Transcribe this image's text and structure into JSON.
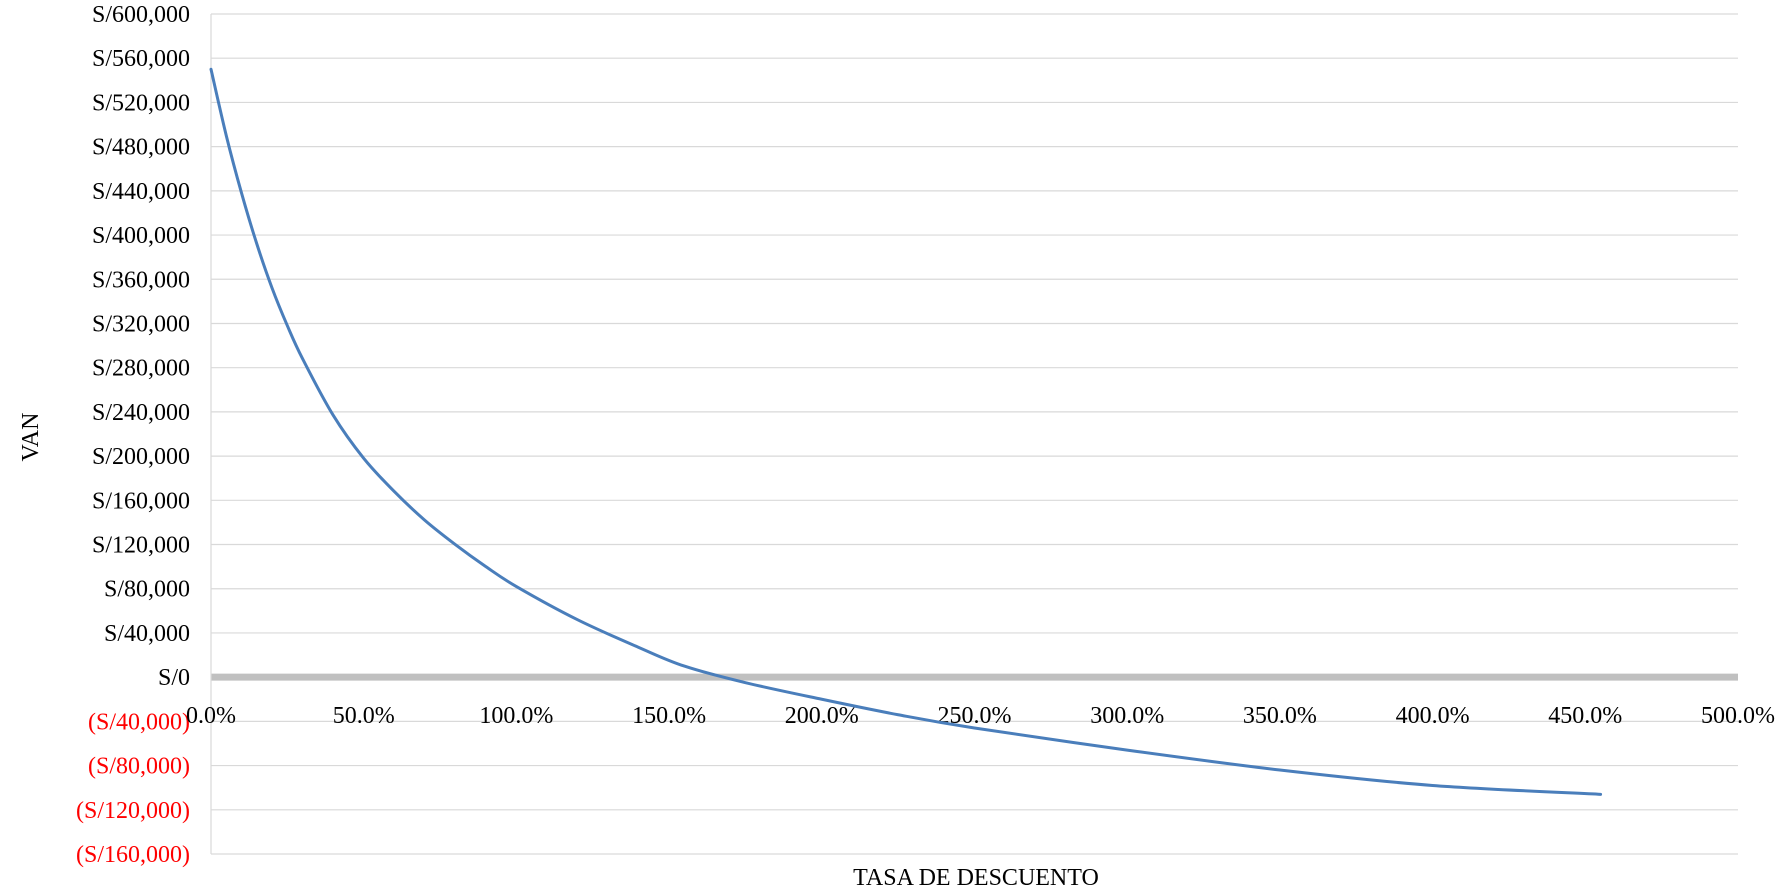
{
  "chart_data": {
    "type": "line",
    "title": "",
    "xlabel": "TASA DE DESCUENTO",
    "ylabel": "VAN",
    "xlim": [
      0,
      500
    ],
    "ylim": [
      -160000,
      600000
    ],
    "y_ticks": [
      {
        "value": 600000,
        "label": "S/600,000"
      },
      {
        "value": 560000,
        "label": "S/560,000"
      },
      {
        "value": 520000,
        "label": "S/520,000"
      },
      {
        "value": 480000,
        "label": "S/480,000"
      },
      {
        "value": 440000,
        "label": "S/440,000"
      },
      {
        "value": 400000,
        "label": "S/400,000"
      },
      {
        "value": 360000,
        "label": "S/360,000"
      },
      {
        "value": 320000,
        "label": "S/320,000"
      },
      {
        "value": 280000,
        "label": "S/280,000"
      },
      {
        "value": 240000,
        "label": "S/240,000"
      },
      {
        "value": 200000,
        "label": "S/200,000"
      },
      {
        "value": 160000,
        "label": "S/160,000"
      },
      {
        "value": 120000,
        "label": "S/120,000"
      },
      {
        "value": 80000,
        "label": "S/80,000"
      },
      {
        "value": 40000,
        "label": "S/40,000"
      },
      {
        "value": 0,
        "label": "S/0"
      },
      {
        "value": -40000,
        "label": "(S/40,000)"
      },
      {
        "value": -80000,
        "label": "(S/80,000)"
      },
      {
        "value": -120000,
        "label": "(S/120,000)"
      },
      {
        "value": -160000,
        "label": "(S/160,000)"
      }
    ],
    "x_ticks": [
      {
        "value": 0,
        "label": "0.0%"
      },
      {
        "value": 50,
        "label": "50.0%"
      },
      {
        "value": 100,
        "label": "100.0%"
      },
      {
        "value": 150,
        "label": "150.0%"
      },
      {
        "value": 200,
        "label": "200.0%"
      },
      {
        "value": 250,
        "label": "250.0%"
      },
      {
        "value": 300,
        "label": "300.0%"
      },
      {
        "value": 350,
        "label": "350.0%"
      },
      {
        "value": 400,
        "label": "400.0%"
      },
      {
        "value": 450,
        "label": "450.0%"
      },
      {
        "value": 500,
        "label": "500.0%"
      }
    ],
    "grid": true,
    "legend": "none",
    "negative_label_color": "#ff0000",
    "series": [
      {
        "color": "#4a7ebb",
        "x": [
          0,
          5,
          10,
          15,
          20,
          25,
          30,
          40,
          50,
          60,
          70,
          80,
          90,
          100,
          120,
          140,
          155,
          175,
          200,
          225,
          250,
          300,
          350,
          400,
          455
        ],
        "y": [
          550000,
          490000,
          438000,
          392000,
          352000,
          318000,
          288000,
          237000,
          198000,
          168000,
          142000,
          120000,
          100000,
          82000,
          52000,
          27000,
          10000,
          -5000,
          -20000,
          -34000,
          -46000,
          -66000,
          -84000,
          -98000,
          -106000
        ]
      }
    ]
  }
}
